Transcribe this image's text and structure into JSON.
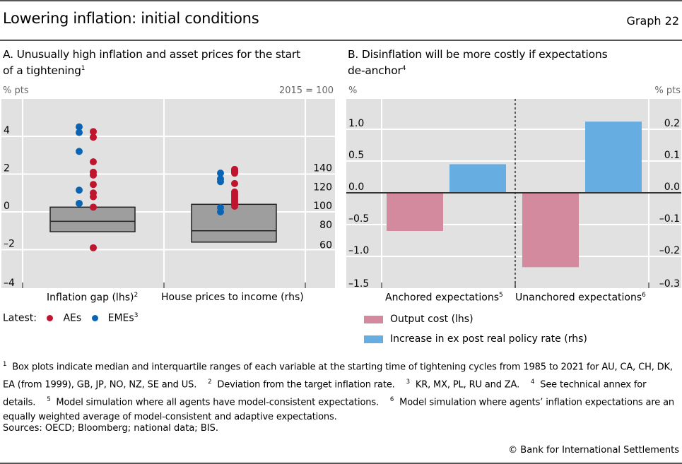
{
  "header": {
    "title": "Lowering inflation: initial conditions",
    "graph_number": "Graph 22"
  },
  "panelA": {
    "title_line1": "A. Unusually high inflation and asset prices for the start",
    "title_line2": "of a tightening",
    "title_sup": "1",
    "left_unit": "% pts",
    "right_unit": "2015 = 100",
    "legend_prefix": "Latest:",
    "legend_aes": "AEs",
    "legend_emes": "EMEs",
    "legend_emes_sup": "3",
    "cat1": "Inflation gap (lhs)",
    "cat1_sup": "2",
    "cat2": "House prices to income (rhs)"
  },
  "panelB": {
    "title_line1": "B. Disinflation will be more costly if expectations",
    "title_line2": "de-anchor",
    "title_sup": "4",
    "left_unit": "%",
    "right_unit": "% pts",
    "cat1": "Anchored expectations",
    "cat1_sup": "5",
    "cat2": "Unanchored expectations",
    "cat2_sup": "6",
    "legend_output": "Output cost (lhs)",
    "legend_rate": "Increase in ex post real policy rate (rhs)"
  },
  "colors": {
    "aes": "#c0152f",
    "emes": "#0a64b4",
    "box": "#9e9e9e",
    "output_cost": "#d48a9e",
    "policy_rate": "#66aee2",
    "plot_bg": "#e1e1e1"
  },
  "chart_data": [
    {
      "type": "box",
      "title": "A. Unusually high inflation and asset prices for the start of a tightening",
      "categories": [
        "Inflation gap (lhs)",
        "House prices to income (rhs)"
      ],
      "left_axis": {
        "label": "% pts",
        "ylim": [
          -4,
          5
        ],
        "ticks": [
          -4,
          -2,
          0,
          2,
          4
        ],
        "tick_labels": [
          "–4",
          "–2",
          "0",
          "2",
          "4"
        ]
      },
      "right_axis": {
        "label": "2015 = 100",
        "ylim": [
          60,
          150
        ],
        "ticks": [
          60,
          80,
          100,
          120,
          140
        ],
        "tick_labels": [
          "60",
          "80",
          "100",
          "120",
          "140"
        ]
      },
      "boxes": [
        {
          "category": "Inflation gap (lhs)",
          "axis": "left",
          "q1": -1.05,
          "median": -0.5,
          "q3": 0.25
        },
        {
          "category": "House prices to income (rhs)",
          "axis": "right",
          "q1": 68,
          "median": 80,
          "q3": 108
        }
      ],
      "points": [
        {
          "category": "Inflation gap (lhs)",
          "group": "AEs",
          "values": [
            4.25,
            3.95,
            2.65,
            2.1,
            1.95,
            1.45,
            1.0,
            0.8,
            0.25,
            -1.9
          ]
        },
        {
          "category": "Inflation gap (lhs)",
          "group": "EMEs",
          "values": [
            4.5,
            4.2,
            3.2,
            1.15,
            0.45
          ]
        },
        {
          "category": "House prices to income (rhs)",
          "group": "AEs",
          "values": [
            145,
            144,
            143,
            142,
            141,
            130,
            121,
            119,
            117,
            115,
            113,
            111,
            109,
            107,
            106
          ]
        },
        {
          "category": "House prices to income (rhs)",
          "group": "EMEs",
          "values": [
            141,
            135,
            132,
            104.5,
            100
          ]
        }
      ],
      "legend": [
        "AEs",
        "EMEs"
      ],
      "grid": true
    },
    {
      "type": "bar",
      "title": "B. Disinflation will be more costly if expectations de-anchor",
      "categories": [
        "Anchored expectations",
        "Unanchored expectations"
      ],
      "series": [
        {
          "name": "Output cost (lhs)",
          "axis": "left",
          "values": [
            -0.6,
            -1.17
          ]
        },
        {
          "name": "Increase in ex post real policy rate (rhs)",
          "axis": "right",
          "values": [
            0.09,
            0.224
          ]
        }
      ],
      "left_axis": {
        "label": "%",
        "ylim": [
          -1.5,
          1.5
        ],
        "ticks": [
          -1.5,
          -1.0,
          -0.5,
          0.0,
          0.5,
          1.0
        ],
        "tick_labels": [
          "–1.5",
          "–1.0",
          "–0.5",
          "0.0",
          "0.5",
          "1.0"
        ]
      },
      "right_axis": {
        "label": "% pts",
        "ylim": [
          -0.3,
          0.3
        ],
        "ticks": [
          -0.3,
          -0.2,
          -0.1,
          0.0,
          0.1,
          0.2
        ],
        "tick_labels": [
          "–0.3",
          "–0.2",
          "–0.1",
          "0.0",
          "0.1",
          "0.2"
        ]
      },
      "legend": "bottom-left",
      "grid": true
    }
  ],
  "footnotes": {
    "n1_mark": "1",
    "n1": "Box plots indicate median and interquartile ranges of each variable at the starting time of tightening cycles from 1985 to 2021 for AU, CA, CH, DK, EA (from 1999), GB, JP, NO, NZ, SE and US.",
    "n2_mark": "2",
    "n2": "Deviation from the target inflation rate.",
    "n3_mark": "3",
    "n3": "KR, MX, PL, RU and ZA.",
    "n4_mark": "4",
    "n4": "See technical annex for details.",
    "n5_mark": "5",
    "n5": "Model simulation where all agents have model-consistent expectations.",
    "n6_mark": "6",
    "n6": "Model simulation where agents’ inflation expectations are an equally weighted average of model-consistent and adaptive expectations.",
    "sources": "Sources: OECD; Bloomberg; national data; BIS.",
    "copyright": "© Bank for International Settlements"
  }
}
